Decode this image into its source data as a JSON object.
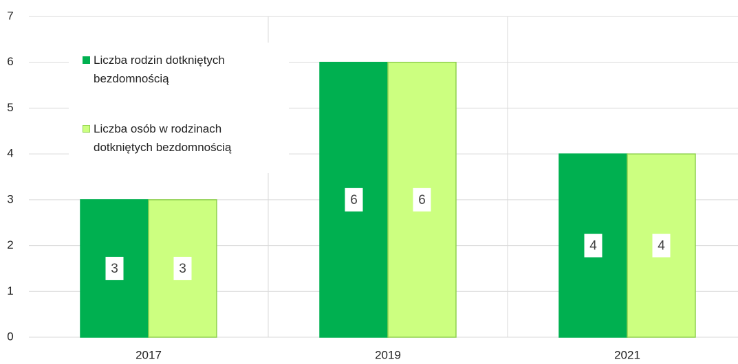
{
  "chart_data": {
    "type": "bar",
    "categories": [
      "2017",
      "2019",
      "2021"
    ],
    "series": [
      {
        "name": "Liczba rodzin dotkniętych bezdomnością",
        "color": "#00b050",
        "values": [
          3,
          6,
          4
        ]
      },
      {
        "name": "Liczba osób w rodzinach dotkniętych bezdomnością",
        "color": "#ccff80",
        "values": [
          3,
          6,
          4
        ]
      }
    ],
    "ylim": [
      0,
      7
    ],
    "yticks": [
      0,
      1,
      2,
      3,
      4,
      5,
      6,
      7
    ],
    "grid": true,
    "legend": "upper-left"
  }
}
